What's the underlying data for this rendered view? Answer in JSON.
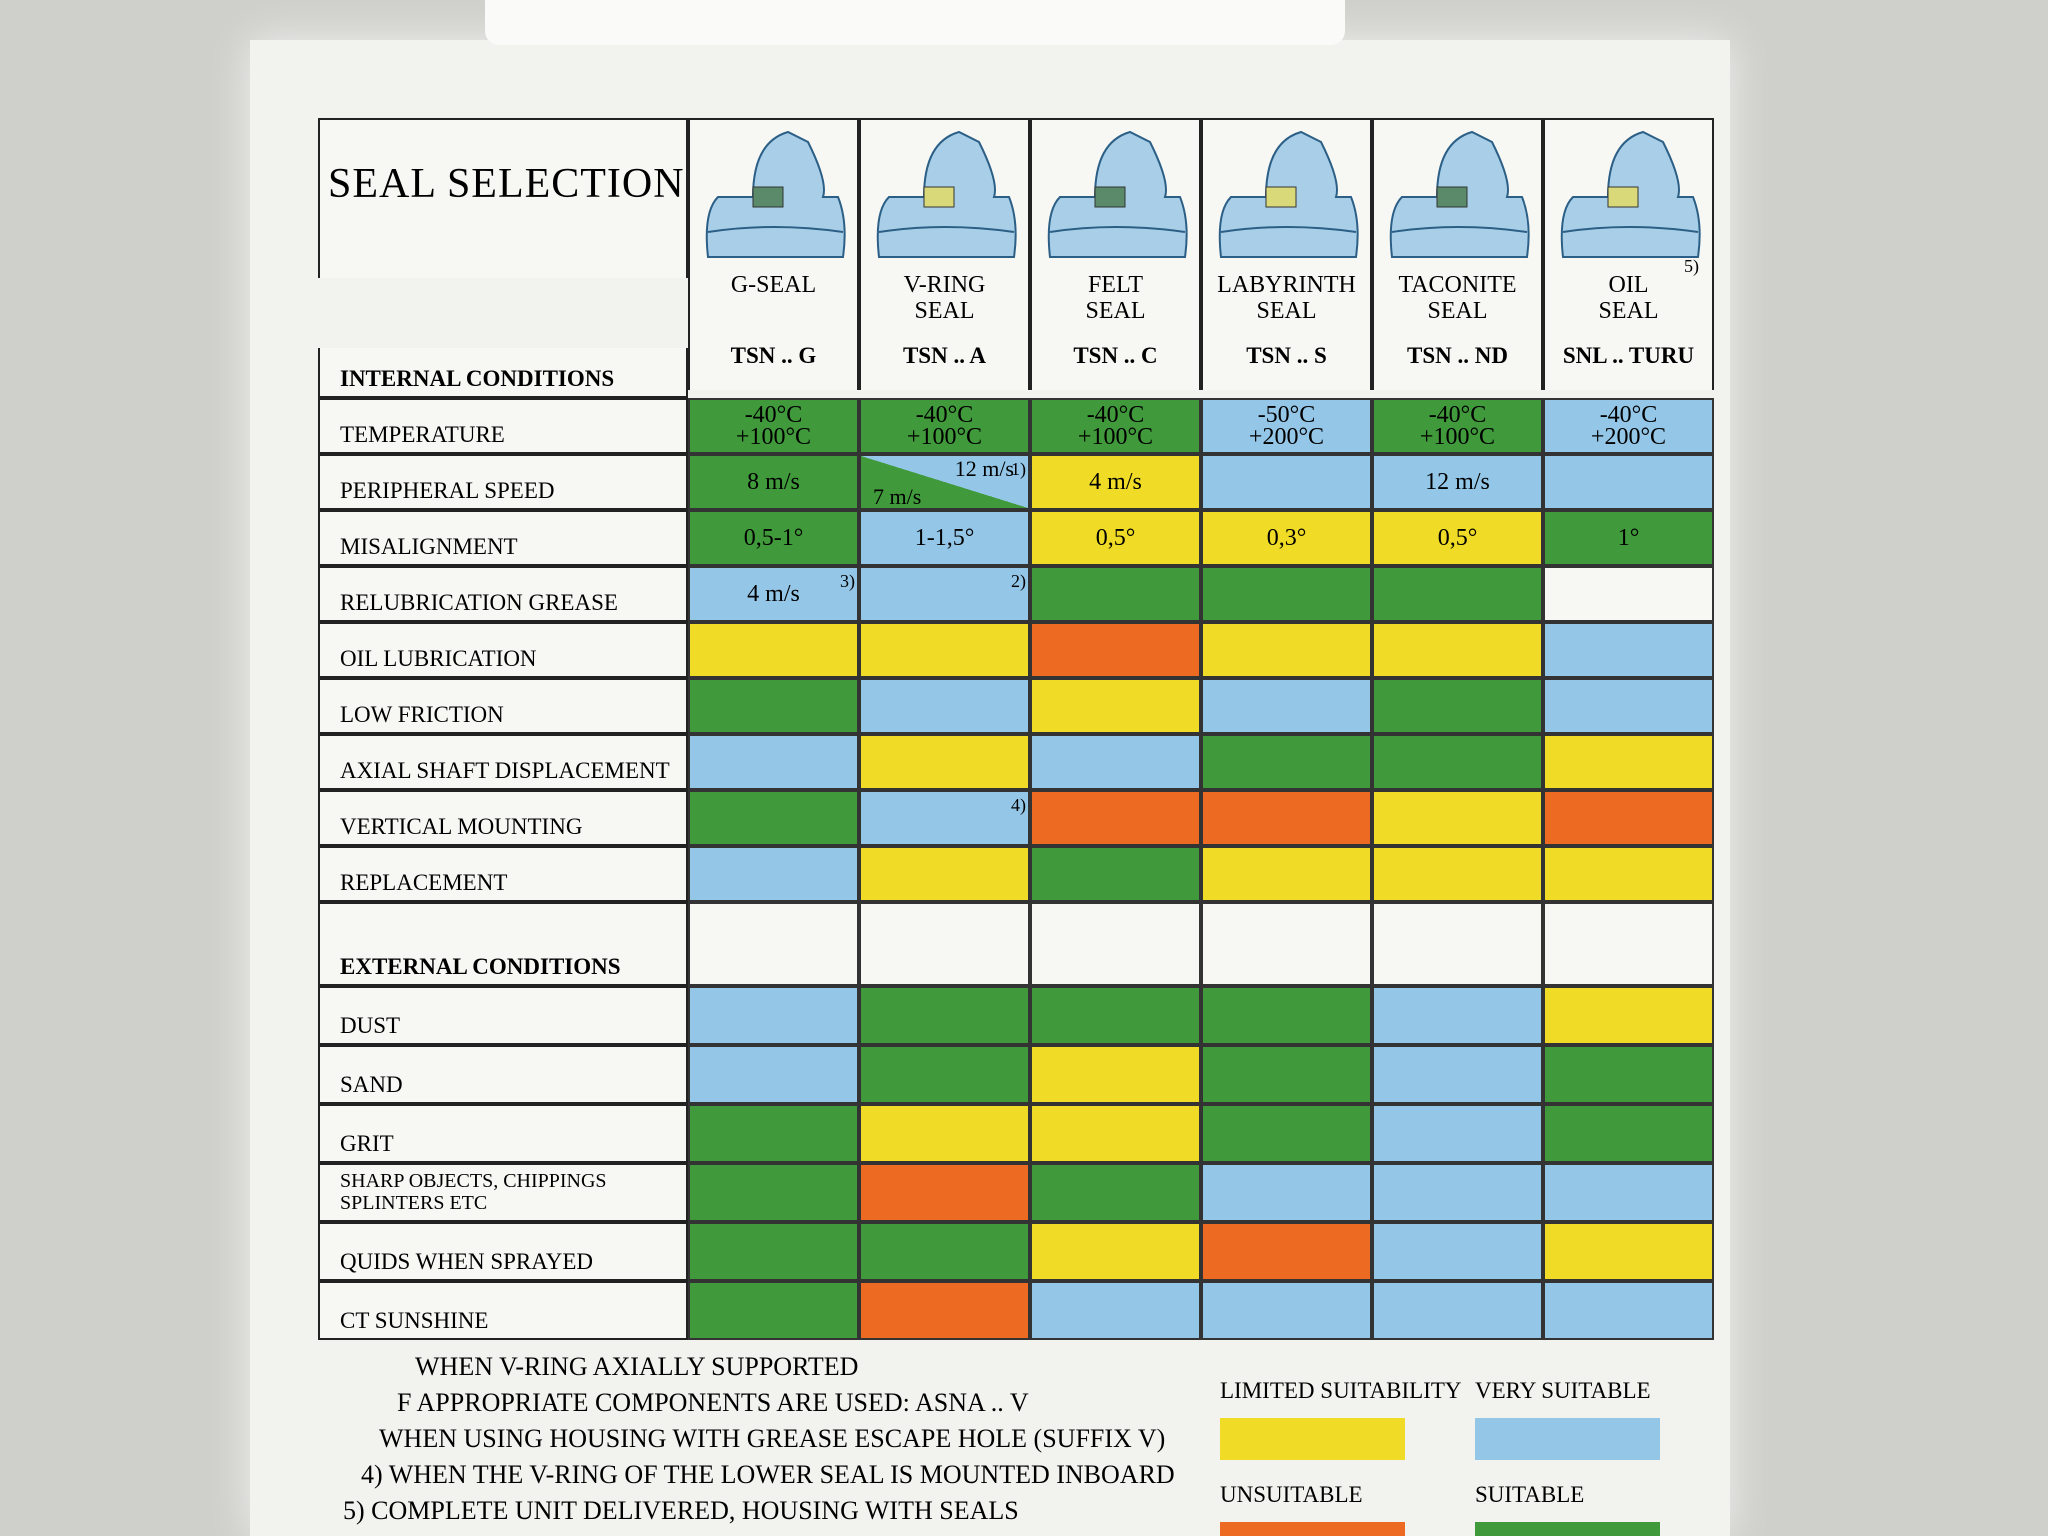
{
  "header": {
    "title": "SEAL SELECTION"
  },
  "columns": [
    {
      "name": "G-SEAL",
      "designation": "TSN .. G"
    },
    {
      "name": "V-RING\nSEAL",
      "designation": "TSN .. A"
    },
    {
      "name": "FELT\nSEAL",
      "designation": "TSN .. C"
    },
    {
      "name": "LABYRINTH\nSEAL",
      "designation": "TSN .. S"
    },
    {
      "name": "TACONITE\nSEAL",
      "designation": "TSN .. ND"
    },
    {
      "name": "OIL\nSEAL",
      "designation": "SNL .. TURU",
      "note": "5)"
    }
  ],
  "legend": [
    {
      "label": "LIMITED SUITABILITY",
      "color": "#f0dc26"
    },
    {
      "label": "VERY SUITABLE",
      "color": "#94c6e8"
    },
    {
      "label": "UNSUITABLE",
      "color": "#ec6a22"
    },
    {
      "label": "SUITABLE",
      "color": "#40993a"
    }
  ],
  "sections": [
    {
      "title": "INTERNAL CONDITIONS",
      "rows": [
        {
          "label": "TEMPERATURE",
          "cells": [
            {
              "r": 3,
              "t": "-40°C\n+100°C"
            },
            {
              "r": 3,
              "t": "-40°C\n+100°C"
            },
            {
              "r": 3,
              "t": "-40°C\n+100°C"
            },
            {
              "r": 1,
              "t": "-50°C\n+200°C"
            },
            {
              "r": 3,
              "t": "-40°C\n+100°C"
            },
            {
              "r": 1,
              "t": "-40°C\n+200°C"
            }
          ]
        },
        {
          "label": "PERIPHERAL SPEED",
          "cells": [
            {
              "r": 3,
              "t": "8 m/s"
            },
            {
              "r": [
                1,
                3
              ],
              "t": [
                "12 m/s",
                "7 m/s"
              ],
              "fn": "1)"
            },
            {
              "r": 0,
              "t": "4 m/s"
            },
            {
              "r": 1
            },
            {
              "r": 1,
              "t": "12 m/s"
            },
            {
              "r": 1
            }
          ]
        },
        {
          "label": "MISALIGNMENT",
          "cells": [
            {
              "r": 3,
              "t": "0,5-1°"
            },
            {
              "r": 1,
              "t": "1-1,5°"
            },
            {
              "r": 0,
              "t": "0,5°"
            },
            {
              "r": 0,
              "t": "0,3°"
            },
            {
              "r": 0,
              "t": "0,5°"
            },
            {
              "r": 3,
              "t": "1°"
            }
          ]
        },
        {
          "label": "RELUBRICATION GREASE",
          "cells": [
            {
              "r": 1,
              "t": "4 m/s",
              "fn": "3)"
            },
            {
              "r": 1,
              "fn": "2)"
            },
            {
              "r": 3
            },
            {
              "r": 3
            },
            {
              "r": 3
            },
            {
              "r": null
            }
          ]
        },
        {
          "label": "OIL LUBRICATION",
          "cells": [
            {
              "r": 0
            },
            {
              "r": 0
            },
            {
              "r": 2
            },
            {
              "r": 0
            },
            {
              "r": 0
            },
            {
              "r": 1
            }
          ]
        },
        {
          "label": "LOW FRICTION",
          "cells": [
            {
              "r": 3
            },
            {
              "r": 1
            },
            {
              "r": 0
            },
            {
              "r": 1
            },
            {
              "r": 3
            },
            {
              "r": 1
            }
          ]
        },
        {
          "label": "AXIAL SHAFT DISPLACEMENT",
          "cells": [
            {
              "r": 1
            },
            {
              "r": 0
            },
            {
              "r": 1
            },
            {
              "r": 3
            },
            {
              "r": 3
            },
            {
              "r": 0
            }
          ]
        },
        {
          "label": "VERTICAL MOUNTING",
          "cells": [
            {
              "r": 3
            },
            {
              "r": 1,
              "fn": "4)"
            },
            {
              "r": 2
            },
            {
              "r": 2
            },
            {
              "r": 0
            },
            {
              "r": 2
            }
          ]
        },
        {
          "label": "REPLACEMENT",
          "cells": [
            {
              "r": 1
            },
            {
              "r": 0
            },
            {
              "r": 3
            },
            {
              "r": 0
            },
            {
              "r": 0
            },
            {
              "r": 0
            }
          ]
        }
      ]
    },
    {
      "title": "EXTERNAL CONDITIONS",
      "rows": [
        {
          "label": "DUST",
          "cells": [
            {
              "r": 1
            },
            {
              "r": 3
            },
            {
              "r": 3
            },
            {
              "r": 3
            },
            {
              "r": 1
            },
            {
              "r": 0
            }
          ]
        },
        {
          "label": "SAND",
          "cells": [
            {
              "r": 1
            },
            {
              "r": 3
            },
            {
              "r": 0
            },
            {
              "r": 3
            },
            {
              "r": 1
            },
            {
              "r": 3
            }
          ]
        },
        {
          "label": "GRIT",
          "cells": [
            {
              "r": 3
            },
            {
              "r": 0
            },
            {
              "r": 0
            },
            {
              "r": 3
            },
            {
              "r": 1
            },
            {
              "r": 3
            }
          ]
        },
        {
          "label": "SHARP OBJECTS, CHIPPINGS\nSPLINTERS ETC",
          "cells": [
            {
              "r": 3
            },
            {
              "r": 2
            },
            {
              "r": 3
            },
            {
              "r": 1
            },
            {
              "r": 1
            },
            {
              "r": 1
            }
          ]
        },
        {
          "label": "QUIDS WHEN SPRAYED",
          "cells": [
            {
              "r": 3
            },
            {
              "r": 3
            },
            {
              "r": 0
            },
            {
              "r": 2
            },
            {
              "r": 1
            },
            {
              "r": 0
            }
          ]
        },
        {
          "label": "CT SUNSHINE",
          "cells": [
            {
              "r": 3
            },
            {
              "r": 2
            },
            {
              "r": 1
            },
            {
              "r": 1
            },
            {
              "r": 1
            },
            {
              "r": 1
            }
          ]
        }
      ]
    }
  ],
  "footnotes": [
    "WHEN V-RING AXIALLY SUPPORTED",
    "F APPROPRIATE COMPONENTS ARE USED: ASNA .. V",
    "WHEN USING HOUSING WITH GREASE ESCAPE HOLE (SUFFIX V)",
    "4) WHEN THE V-RING OF THE LOWER SEAL IS MOUNTED INBOARD",
    "5) COMPLETE UNIT DELIVERED, HOUSING WITH SEALS"
  ]
}
